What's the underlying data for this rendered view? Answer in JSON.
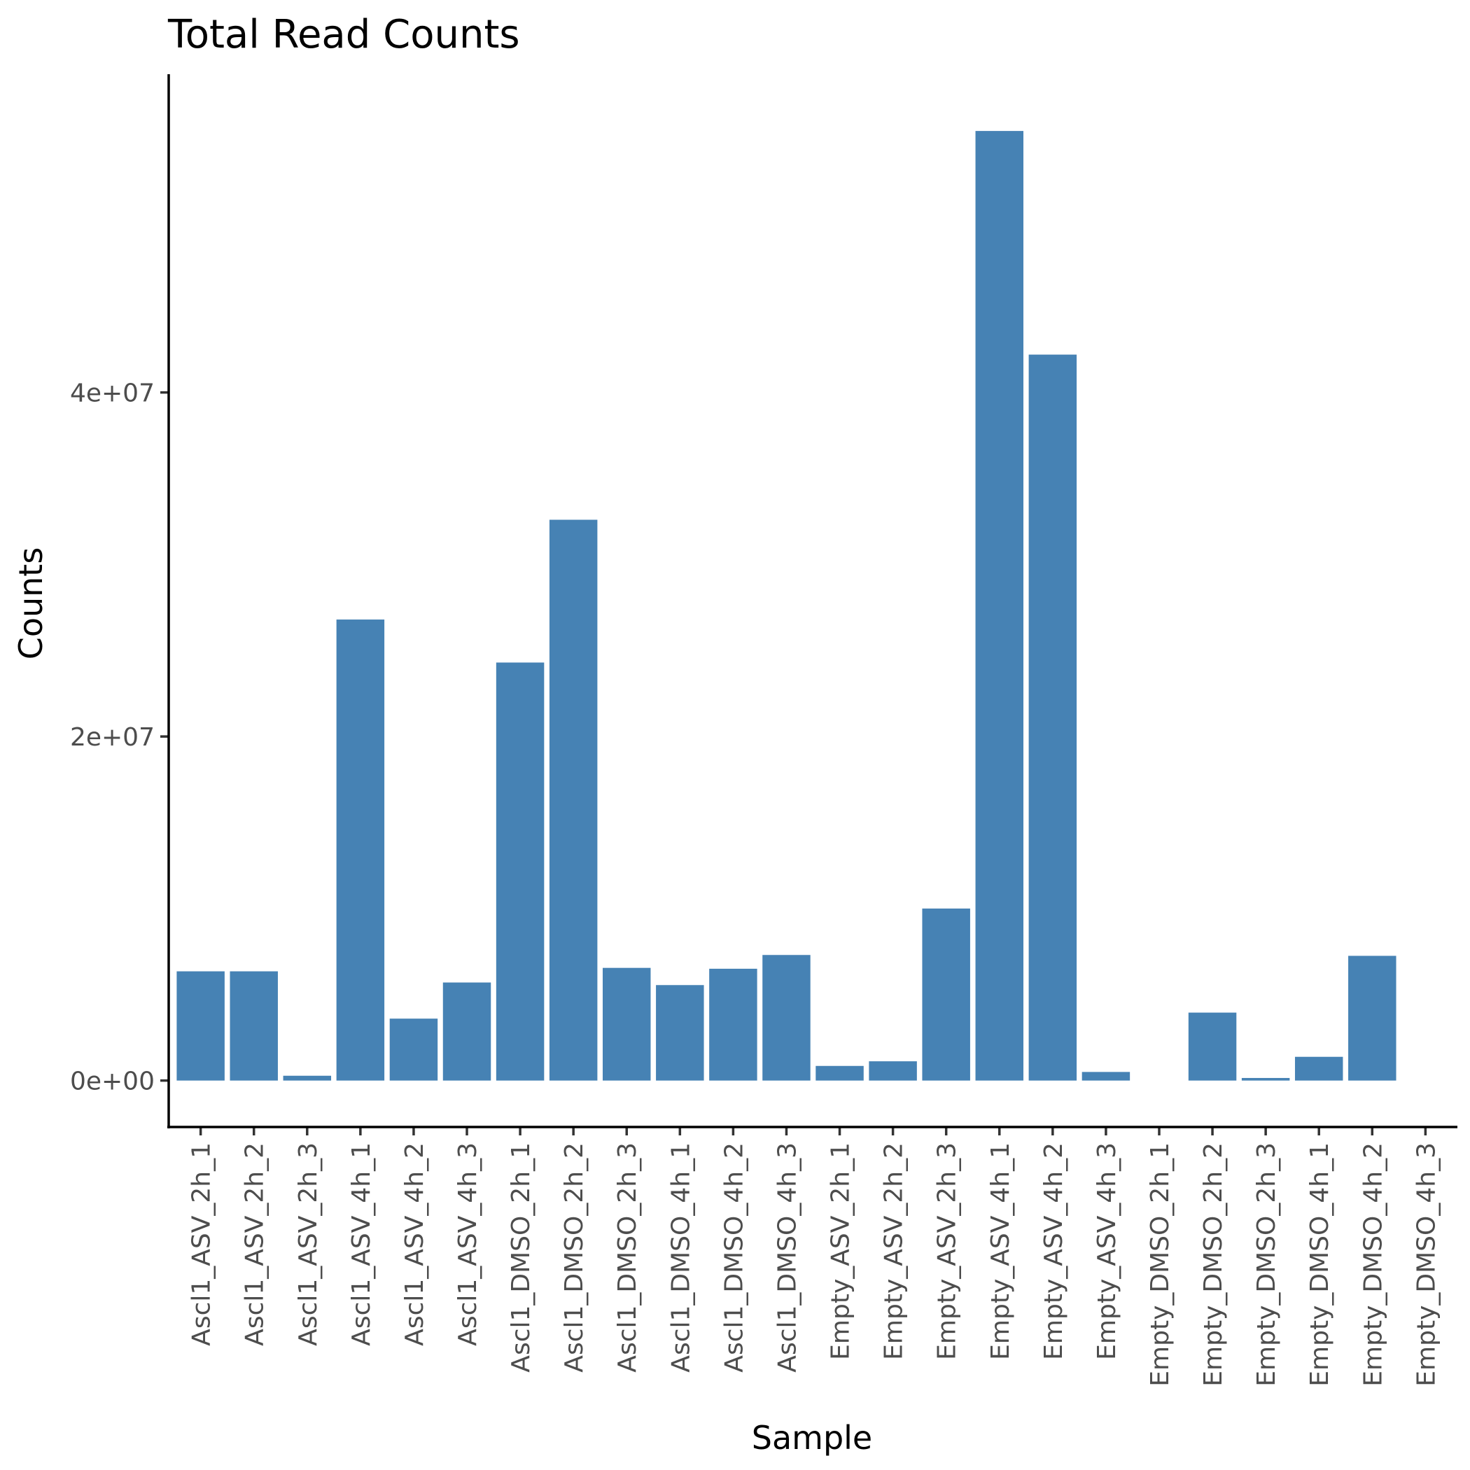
{
  "chart_data": {
    "type": "bar",
    "title": "Total Read Counts",
    "xlabel": "Sample",
    "ylabel": "Counts",
    "categories": [
      "Ascl1_ASV_2h_1",
      "Ascl1_ASV_2h_2",
      "Ascl1_ASV_2h_3",
      "Ascl1_ASV_4h_1",
      "Ascl1_ASV_4h_2",
      "Ascl1_ASV_4h_3",
      "Ascl1_DMSO_2h_1",
      "Ascl1_DMSO_2h_2",
      "Ascl1_DMSO_2h_3",
      "Ascl1_DMSO_4h_1",
      "Ascl1_DMSO_4h_2",
      "Ascl1_DMSO_4h_3",
      "Empty_ASV_2h_1",
      "Empty_ASV_2h_2",
      "Empty_ASV_2h_3",
      "Empty_ASV_4h_1",
      "Empty_ASV_4h_2",
      "Empty_ASV_4h_3",
      "Empty_DMSO_2h_1",
      "Empty_DMSO_2h_2",
      "Empty_DMSO_2h_3",
      "Empty_DMSO_4h_1",
      "Empty_DMSO_4h_2",
      "Empty_DMSO_4h_3"
    ],
    "values": [
      6350000,
      6350000,
      280000,
      26800000,
      3600000,
      5700000,
      24300000,
      32600000,
      6550000,
      5550000,
      6500000,
      7300000,
      850000,
      1120000,
      10000000,
      55200000,
      42200000,
      500000,
      0,
      3950000,
      150000,
      1380000,
      7250000,
      0
    ],
    "ylim": [
      -2700000,
      58500000
    ],
    "yticks": [
      0,
      20000000,
      40000000
    ],
    "ytick_labels": [
      "0e+00",
      "2e+07",
      "4e+07"
    ],
    "bar_color": "#4682b4",
    "grid": false,
    "legend": "none"
  }
}
